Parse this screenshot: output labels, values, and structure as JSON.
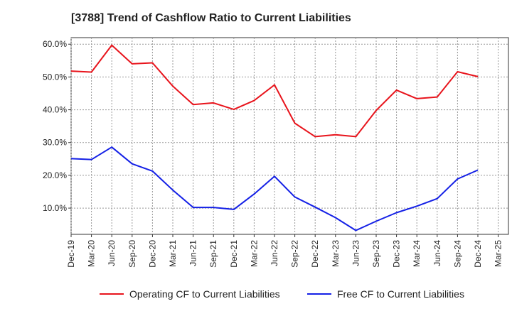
{
  "chart_data": {
    "type": "line",
    "title": "[3788]  Trend of Cashflow Ratio to Current Liabilities",
    "xlabel": "",
    "ylabel": "",
    "ylim": [
      2,
      62
    ],
    "y_ticks": [
      "10.0%",
      "20.0%",
      "30.0%",
      "40.0%",
      "50.0%",
      "60.0%"
    ],
    "y_tick_values": [
      10,
      20,
      30,
      40,
      50,
      60
    ],
    "grid": true,
    "legend_position": "bottom",
    "categories": [
      "Dec-19",
      "Mar-20",
      "Jun-20",
      "Sep-20",
      "Dec-20",
      "Mar-21",
      "Jun-21",
      "Sep-21",
      "Dec-21",
      "Mar-22",
      "Jun-22",
      "Sep-22",
      "Dec-22",
      "Mar-23",
      "Jun-23",
      "Sep-23",
      "Dec-23",
      "Mar-24",
      "Jun-24",
      "Sep-24",
      "Dec-24",
      "Mar-25"
    ],
    "series": [
      {
        "name": "Operating CF to Current Liabilities",
        "color": "#e8141c",
        "values": [
          51.8,
          51.5,
          59.7,
          54.0,
          54.3,
          47.2,
          41.6,
          42.1,
          40.1,
          42.8,
          47.6,
          35.9,
          31.8,
          32.4,
          31.8,
          39.8,
          46.0,
          43.4,
          43.9,
          51.6,
          50.1,
          null
        ]
      },
      {
        "name": "Free CF to Current Liabilities",
        "color": "#1420e6",
        "values": [
          25.1,
          24.8,
          28.6,
          23.5,
          21.3,
          15.5,
          10.2,
          10.2,
          9.6,
          14.3,
          19.7,
          13.4,
          10.3,
          7.1,
          3.2,
          6.0,
          8.6,
          10.6,
          12.9,
          18.9,
          21.6,
          null
        ]
      }
    ]
  }
}
